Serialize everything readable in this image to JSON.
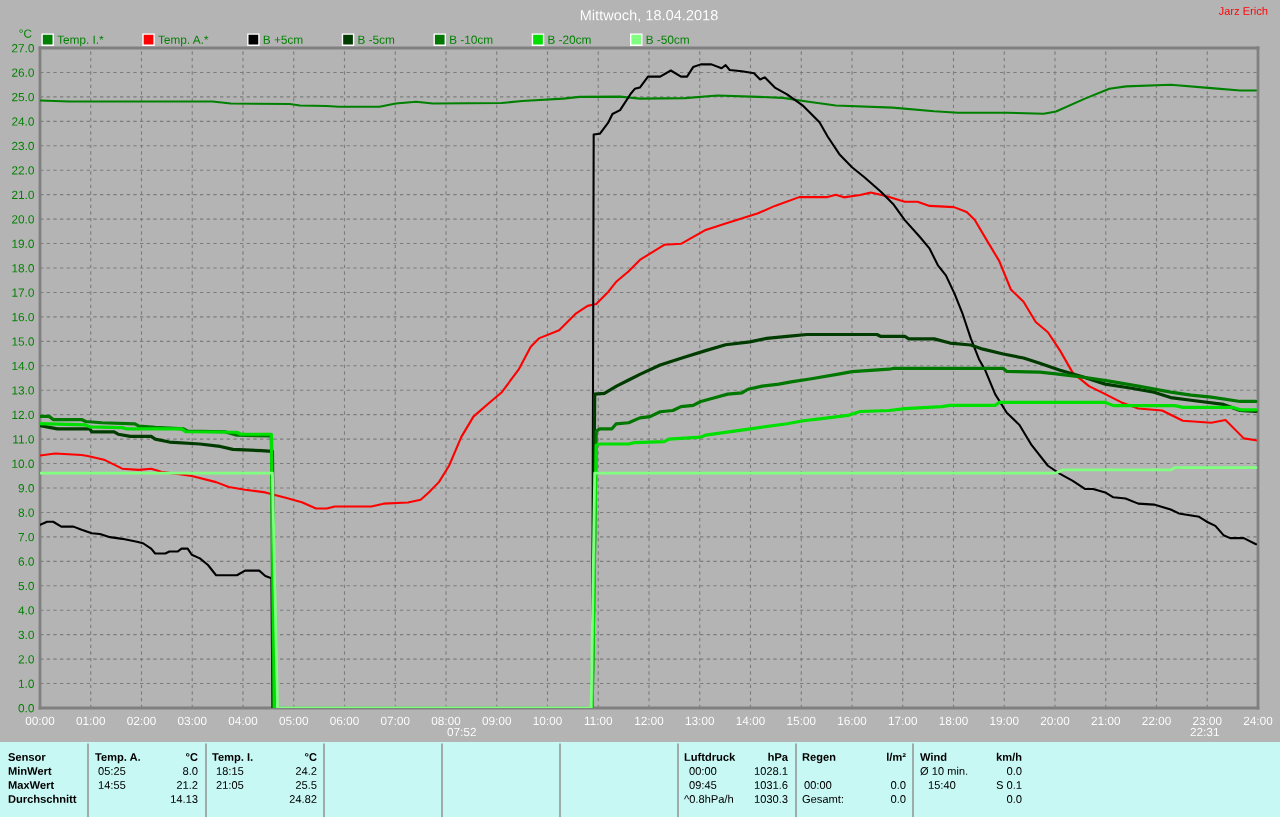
{
  "chart_data": {
    "type": "line",
    "title": "Mittwoch, 18.04.2018",
    "ylabel": "°C",
    "xlim": [
      0,
      24
    ],
    "ylim": [
      0,
      27
    ],
    "xticks": [
      {
        "value": 0,
        "label": "00:00"
      },
      {
        "value": 1,
        "label": "01:00"
      },
      {
        "value": 2,
        "label": "02:00"
      },
      {
        "value": 3,
        "label": "03:00"
      },
      {
        "value": 4,
        "label": "04:00"
      },
      {
        "value": 5,
        "label": "05:00"
      },
      {
        "value": 6,
        "label": "06:00"
      },
      {
        "value": 7,
        "label": "07:00"
      },
      {
        "value": 8,
        "label": "08:00"
      },
      {
        "value": 9,
        "label": "09:00"
      },
      {
        "value": 10,
        "label": "10:00"
      },
      {
        "value": 11,
        "label": "11:00"
      },
      {
        "value": 12,
        "label": "12:00"
      },
      {
        "value": 13,
        "label": "13:00"
      },
      {
        "value": 14,
        "label": "14:00"
      },
      {
        "value": 15,
        "label": "15:00"
      },
      {
        "value": 16,
        "label": "16:00"
      },
      {
        "value": 17,
        "label": "17:00"
      },
      {
        "value": 18,
        "label": "18:00"
      },
      {
        "value": 19,
        "label": "19:00"
      },
      {
        "value": 20,
        "label": "20:00"
      },
      {
        "value": 21,
        "label": "21:00"
      },
      {
        "value": 22,
        "label": "22:00"
      },
      {
        "value": 23,
        "label": "23:00"
      },
      {
        "value": 24,
        "label": "24:00"
      }
    ],
    "yticks": [
      {
        "value": 0,
        "label": "0.0"
      },
      {
        "value": 1,
        "label": "1.0"
      },
      {
        "value": 2,
        "label": "2.0"
      },
      {
        "value": 3,
        "label": "3.0"
      },
      {
        "value": 4,
        "label": "4.0"
      },
      {
        "value": 5,
        "label": "5.0"
      },
      {
        "value": 6,
        "label": "6.0"
      },
      {
        "value": 7,
        "label": "7.0"
      },
      {
        "value": 8,
        "label": "8.0"
      },
      {
        "value": 9,
        "label": "9.0"
      },
      {
        "value": 10,
        "label": "10.0"
      },
      {
        "value": 11,
        "label": "11.0"
      },
      {
        "value": 12,
        "label": "12.0"
      },
      {
        "value": 13,
        "label": "13.0"
      },
      {
        "value": 14,
        "label": "14.0"
      },
      {
        "value": 15,
        "label": "15.0"
      },
      {
        "value": 16,
        "label": "16.0"
      },
      {
        "value": 17,
        "label": "17.0"
      },
      {
        "value": 18,
        "label": "18.0"
      },
      {
        "value": 19,
        "label": "19.0"
      },
      {
        "value": 20,
        "label": "20.0"
      },
      {
        "value": 21,
        "label": "21.0"
      },
      {
        "value": 22,
        "label": "22.0"
      },
      {
        "value": 23,
        "label": "23.0"
      },
      {
        "value": 24,
        "label": "24.0"
      },
      {
        "value": 25,
        "label": "25.0"
      },
      {
        "value": 26,
        "label": "26.0"
      },
      {
        "value": 27,
        "label": "27.0"
      }
    ],
    "grid": true,
    "legend": "top left",
    "series": [
      {
        "name": "Temp. I.*",
        "color": "#008000",
        "x": [
          0,
          0.58,
          3.4,
          3.76,
          4.92,
          5.12,
          5.65,
          5.89,
          6.69,
          7.01,
          7.41,
          7.74,
          9.1,
          9.5,
          10.31,
          10.63,
          11.43,
          11.82,
          12.71,
          13.35,
          14.15,
          14.64,
          15.04,
          15.68,
          16.8,
          17.62,
          18.09,
          19.05,
          19.78,
          20.02,
          20.59,
          21.07,
          21.4,
          22.28,
          23.08,
          23.65,
          23.96
        ],
        "values": [
          24.85,
          24.81,
          24.81,
          24.73,
          24.71,
          24.65,
          24.63,
          24.6,
          24.6,
          24.73,
          24.8,
          24.73,
          24.75,
          24.83,
          24.93,
          25.0,
          25.01,
          24.93,
          24.95,
          25.06,
          25.0,
          24.96,
          24.83,
          24.65,
          24.56,
          24.41,
          24.35,
          24.35,
          24.31,
          24.4,
          24.93,
          25.33,
          25.43,
          25.5,
          25.36,
          25.26,
          25.26
        ]
      },
      {
        "name": "Temp. A.*",
        "color": "#ff0000",
        "x": [
          0,
          0.3,
          0.82,
          0.94,
          1.26,
          1.62,
          1.95,
          2.19,
          2.39,
          2.75,
          2.99,
          3.47,
          3.72,
          4.04,
          4.44,
          4.84,
          5.16,
          5.44,
          5.65,
          5.81,
          6.53,
          6.77,
          7.25,
          7.5,
          7.66,
          7.86,
          8.06,
          8.3,
          8.54,
          8.86,
          9.1,
          9.3,
          9.43,
          9.67,
          9.83,
          10.23,
          10.55,
          10.79,
          10.96,
          11.2,
          11.36,
          11.6,
          11.82,
          12.3,
          12.63,
          13.1,
          13.51,
          14.15,
          14.48,
          14.96,
          15.52,
          15.68,
          15.84,
          16.16,
          16.37,
          16.65,
          17.04,
          17.29,
          17.53,
          18.01,
          18.26,
          18.42,
          18.66,
          18.9,
          19.13,
          19.38,
          19.62,
          19.86,
          20.1,
          20.35,
          20.67,
          20.99,
          21.31,
          21.64,
          22.11,
          22.52,
          23.08,
          23.36,
          23.72,
          23.96
        ],
        "values": [
          10.33,
          10.41,
          10.35,
          10.31,
          10.16,
          9.79,
          9.74,
          9.79,
          9.66,
          9.56,
          9.49,
          9.24,
          9.04,
          8.93,
          8.82,
          8.6,
          8.42,
          8.16,
          8.16,
          8.24,
          8.24,
          8.36,
          8.41,
          8.52,
          8.82,
          9.24,
          9.91,
          11.08,
          11.92,
          12.5,
          12.92,
          13.48,
          13.84,
          14.78,
          15.12,
          15.45,
          16.12,
          16.45,
          16.53,
          17.03,
          17.45,
          17.87,
          18.33,
          18.95,
          18.99,
          19.54,
          19.82,
          20.24,
          20.54,
          20.9,
          20.9,
          21.0,
          20.89,
          20.99,
          21.09,
          20.96,
          20.71,
          20.71,
          20.54,
          20.49,
          20.29,
          19.96,
          19.12,
          18.29,
          17.12,
          16.62,
          15.79,
          15.37,
          14.62,
          13.71,
          13.17,
          12.84,
          12.5,
          12.25,
          12.17,
          11.75,
          11.67,
          11.78,
          11.03,
          10.95
        ]
      },
      {
        "name": "B +5cm",
        "color": "#000000",
        "x": [
          0,
          0.14,
          0.26,
          0.42,
          0.66,
          0.82,
          1.02,
          1.18,
          1.38,
          1.62,
          1.91,
          2.03,
          2.19,
          2.27,
          2.47,
          2.55,
          2.71,
          2.79,
          2.91,
          2.99,
          3.15,
          3.31,
          3.47,
          3.88,
          4.04,
          4.32,
          4.44,
          4.56,
          4.58,
          7.5,
          10.88,
          10.91,
          11.03,
          11.2,
          11.28,
          11.43,
          11.64,
          11.72,
          11.82,
          11.98,
          12.22,
          12.43,
          12.63,
          12.75,
          12.87,
          13.02,
          13.23,
          13.43,
          13.51,
          13.59,
          13.83,
          14.07,
          14.19,
          14.28,
          14.48,
          14.72,
          15.04,
          15.36,
          15.52,
          15.76,
          16.0,
          16.25,
          16.57,
          16.81,
          17.04,
          17.33,
          17.53,
          17.69,
          17.85,
          18.02,
          18.18,
          18.34,
          18.5,
          18.62,
          18.82,
          19.05,
          19.3,
          19.54,
          19.86,
          20.1,
          20.35,
          20.59,
          20.75,
          20.99,
          21.15,
          21.39,
          21.64,
          21.95,
          22.28,
          22.44,
          22.84,
          22.99,
          23.16,
          23.32,
          23.45,
          23.72,
          23.96
        ],
        "values": [
          7.49,
          7.62,
          7.62,
          7.42,
          7.42,
          7.29,
          7.15,
          7.12,
          6.99,
          6.92,
          6.8,
          6.74,
          6.52,
          6.32,
          6.32,
          6.4,
          6.4,
          6.52,
          6.52,
          6.27,
          6.12,
          5.85,
          5.43,
          5.43,
          5.62,
          5.62,
          5.4,
          5.31,
          0,
          null,
          0,
          23.46,
          23.49,
          23.96,
          24.3,
          24.46,
          25.13,
          25.33,
          25.38,
          25.83,
          25.83,
          26.08,
          25.83,
          25.83,
          26.22,
          26.33,
          26.33,
          26.17,
          26.3,
          26.1,
          26.05,
          25.97,
          25.71,
          25.8,
          25.38,
          25.1,
          24.63,
          23.96,
          23.38,
          22.63,
          22.12,
          21.7,
          21.12,
          20.62,
          19.96,
          19.29,
          18.79,
          18.12,
          17.7,
          16.95,
          16.12,
          15.12,
          14.28,
          13.84,
          12.84,
          12.08,
          11.58,
          10.75,
          9.91,
          9.58,
          9.29,
          8.96,
          8.96,
          8.82,
          8.62,
          8.57,
          8.36,
          8.32,
          8.12,
          7.96,
          7.82,
          7.62,
          7.45,
          7.07,
          6.95,
          6.95,
          6.7
        ]
      },
      {
        "name": "B -5cm",
        "color": "#003c00",
        "x": [
          0,
          0.34,
          0.98,
          1.02,
          1.46,
          1.54,
          1.78,
          2.19,
          2.27,
          2.55,
          3.15,
          3.55,
          3.8,
          4.36,
          4.58,
          4.62,
          7.5,
          10.88,
          10.93,
          11.12,
          11.36,
          11.6,
          11.82,
          12.22,
          12.71,
          13.1,
          13.51,
          13.99,
          14.32,
          14.72,
          15.11,
          16.49,
          16.57,
          17.04,
          17.12,
          17.62,
          17.93,
          18.34,
          18.58,
          18.98,
          19.38,
          19.7,
          20.1,
          20.51,
          20.99,
          21.48,
          21.95,
          22.28,
          22.68,
          23.32,
          23.65,
          23.96
        ],
        "values": [
          11.55,
          11.42,
          11.42,
          11.3,
          11.3,
          11.2,
          11.11,
          11.11,
          11.0,
          10.88,
          10.8,
          10.7,
          10.58,
          10.53,
          10.5,
          0,
          null,
          0,
          12.84,
          12.87,
          13.17,
          13.42,
          13.65,
          14.03,
          14.36,
          14.61,
          14.86,
          14.98,
          15.12,
          15.2,
          15.28,
          15.28,
          15.2,
          15.2,
          15.1,
          15.1,
          14.93,
          14.85,
          14.68,
          14.48,
          14.32,
          14.1,
          13.82,
          13.57,
          13.25,
          13.09,
          12.92,
          12.7,
          12.59,
          12.42,
          12.17,
          12.13
        ]
      },
      {
        "name": "B -10cm",
        "color": "#007800",
        "x": [
          0,
          0.18,
          0.26,
          0.82,
          0.9,
          1.22,
          1.87,
          1.95,
          2.27,
          2.83,
          2.91,
          3.64,
          3.88,
          4.56,
          4.6,
          7.5,
          10.88,
          10.96,
          11.03,
          11.27,
          11.35,
          11.6,
          11.82,
          12.02,
          12.22,
          12.47,
          12.63,
          12.87,
          13.02,
          13.31,
          13.55,
          13.83,
          13.95,
          14.23,
          14.56,
          14.8,
          15.2,
          15.76,
          16.0,
          16.73,
          16.81,
          18.98,
          19.05,
          19.7,
          20.02,
          20.35,
          20.67,
          21.07,
          21.64,
          22.28,
          22.68,
          23.08,
          23.65,
          23.96
        ],
        "values": [
          11.93,
          11.93,
          11.8,
          11.8,
          11.72,
          11.67,
          11.62,
          11.53,
          11.48,
          11.42,
          11.33,
          11.3,
          11.16,
          11.13,
          0,
          null,
          0,
          11.33,
          11.42,
          11.42,
          11.62,
          11.67,
          11.87,
          11.92,
          12.12,
          12.17,
          12.33,
          12.38,
          12.54,
          12.7,
          12.84,
          12.89,
          13.04,
          13.17,
          13.25,
          13.34,
          13.47,
          13.67,
          13.76,
          13.86,
          13.89,
          13.89,
          13.77,
          13.74,
          13.67,
          13.59,
          13.5,
          13.37,
          13.17,
          12.92,
          12.8,
          12.72,
          12.54,
          12.54
        ]
      },
      {
        "name": "B -20cm",
        "color": "#00e000",
        "x": [
          0,
          0.9,
          0.98,
          1.62,
          1.7,
          2.79,
          2.87,
          3.88,
          3.96,
          4.56,
          4.62,
          7.5,
          10.88,
          10.96,
          11.03,
          11.6,
          11.72,
          12.3,
          12.39,
          13.02,
          13.11,
          13.68,
          14.0,
          14.72,
          15.04,
          15.36,
          15.92,
          16.16,
          16.73,
          17.04,
          17.77,
          17.93,
          18.82,
          18.9,
          20.99,
          21.15,
          22.36,
          22.52,
          23.49,
          23.65,
          23.96
        ],
        "values": [
          11.63,
          11.58,
          11.5,
          11.47,
          11.42,
          11.42,
          11.3,
          11.28,
          11.2,
          11.2,
          0,
          null,
          0,
          10.75,
          10.8,
          10.8,
          10.86,
          10.9,
          11.0,
          11.08,
          11.16,
          11.33,
          11.42,
          11.63,
          11.75,
          11.83,
          11.97,
          12.13,
          12.17,
          12.25,
          12.33,
          12.38,
          12.38,
          12.5,
          12.5,
          12.37,
          12.37,
          12.3,
          12.3,
          12.2,
          12.2
        ]
      },
      {
        "name": "B -50cm",
        "color": "#80ff80",
        "x": [
          0,
          4.58,
          4.68,
          10.86,
          10.93,
          20.02,
          20.15,
          22.28,
          22.36,
          23.96
        ],
        "values": [
          9.61,
          9.61,
          0,
          0,
          9.61,
          9.61,
          9.74,
          9.74,
          9.83,
          9.83
        ]
      }
    ],
    "annotations": [
      "Jarz Erich",
      "07:52",
      "22:31",
      "Sensor",
      "Temp. A.",
      "°C",
      "Temp. I.",
      "°C",
      "Luftdruck",
      "hPa",
      "Regen",
      "l/m²",
      "Wind",
      "km/h",
      "MinWert",
      "05:25",
      "8.0",
      "18:15",
      "24.2",
      "00:00",
      "1028.1",
      "Ø 10 min.",
      "0.0",
      "MaxWert",
      "14:55",
      "21.2",
      "21:05",
      "25.5",
      "09:45",
      "1031.6",
      "00:00",
      "0.0",
      "15:40",
      "S 0.1",
      "Durchschnitt",
      "14.13",
      "24.82",
      "^0.8hPa/h",
      "1030.3",
      "Gesamt:",
      "0.0",
      "0.0"
    ]
  }
}
